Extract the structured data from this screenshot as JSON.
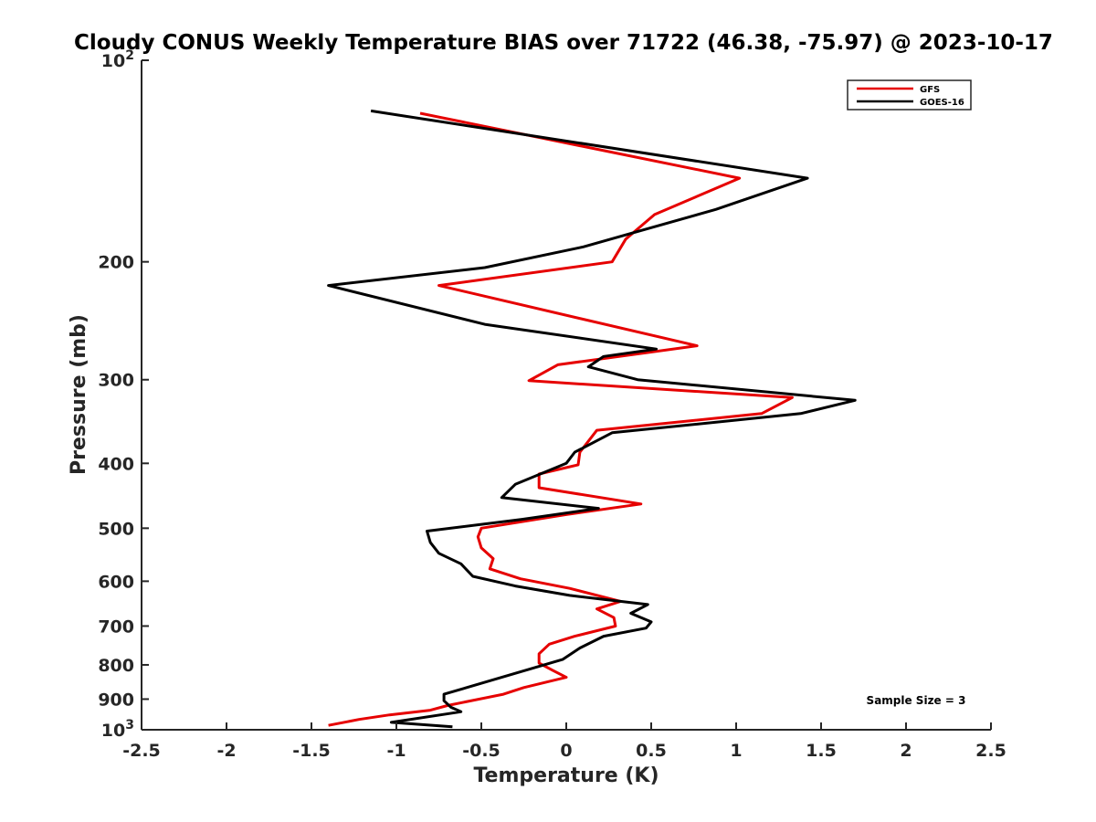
{
  "chart_data": {
    "type": "line",
    "title": "Cloudy CONUS Weekly Temperature BIAS over 71722 (46.38, -75.97) @ 2023-10-17",
    "xlabel": "Temperature (K)",
    "ylabel": "Pressure (mb)",
    "xlim": [
      -2.5,
      2.5
    ],
    "ylim": [
      1000,
      100
    ],
    "yscale": "log",
    "xticks": [
      -2.5,
      -2,
      -1.5,
      -1,
      -0.5,
      0,
      0.5,
      1,
      1.5,
      2,
      2.5
    ],
    "xtick_labels": [
      "-2.5",
      "-2",
      "-1.5",
      "-1",
      "-0.5",
      "0",
      "0.5",
      "1",
      "1.5",
      "2",
      "2.5"
    ],
    "yticks": [
      {
        "value": 100,
        "label": "10",
        "sup": "2"
      },
      {
        "value": 200,
        "label": "200",
        "sup": ""
      },
      {
        "value": 300,
        "label": "300",
        "sup": ""
      },
      {
        "value": 400,
        "label": "400",
        "sup": ""
      },
      {
        "value": 500,
        "label": "500",
        "sup": ""
      },
      {
        "value": 600,
        "label": "600",
        "sup": ""
      },
      {
        "value": 700,
        "label": "700",
        "sup": ""
      },
      {
        "value": 800,
        "label": "800",
        "sup": ""
      },
      {
        "value": 900,
        "label": "900",
        "sup": ""
      },
      {
        "value": 1000,
        "label": "10",
        "sup": "3"
      }
    ],
    "legend_position": "top-right",
    "annotation": "Sample Size = 3",
    "series": [
      {
        "name": "GFS",
        "color": "#e60000",
        "points": [
          [
            -0.86,
            120
          ],
          [
            1.02,
            150
          ],
          [
            0.52,
            170
          ],
          [
            0.35,
            185
          ],
          [
            0.27,
            200
          ],
          [
            -0.75,
            217
          ],
          [
            0.77,
            267
          ],
          [
            -0.05,
            285
          ],
          [
            -0.22,
            301
          ],
          [
            1.33,
            319
          ],
          [
            1.15,
            337
          ],
          [
            0.18,
            357
          ],
          [
            0.08,
            385
          ],
          [
            0.07,
            402
          ],
          [
            -0.16,
            415
          ],
          [
            -0.16,
            435
          ],
          [
            0.44,
            460
          ],
          [
            0.0,
            477
          ],
          [
            -0.5,
            500
          ],
          [
            -0.52,
            515
          ],
          [
            -0.5,
            535
          ],
          [
            -0.43,
            555
          ],
          [
            -0.45,
            575
          ],
          [
            -0.27,
            595
          ],
          [
            0.02,
            615
          ],
          [
            0.32,
            643
          ],
          [
            0.18,
            660
          ],
          [
            0.28,
            680
          ],
          [
            0.29,
            700
          ],
          [
            0.05,
            725
          ],
          [
            -0.1,
            745
          ],
          [
            -0.16,
            770
          ],
          [
            -0.16,
            795
          ],
          [
            -0.08,
            815
          ],
          [
            0.0,
            835
          ],
          [
            -0.25,
            865
          ],
          [
            -0.37,
            885
          ],
          [
            -0.7,
            920
          ],
          [
            -0.8,
            935
          ],
          [
            -1.04,
            950
          ],
          [
            -1.22,
            965
          ],
          [
            -1.4,
            985
          ]
        ]
      },
      {
        "name": "GOES-16",
        "color": "#000000",
        "points": [
          [
            -1.15,
            119
          ],
          [
            1.42,
            150
          ],
          [
            0.88,
            167
          ],
          [
            0.1,
            190
          ],
          [
            -0.48,
            204
          ],
          [
            -1.4,
            217
          ],
          [
            -0.48,
            248
          ],
          [
            0.53,
            270
          ],
          [
            0.22,
            277
          ],
          [
            0.13,
            287
          ],
          [
            0.42,
            300
          ],
          [
            1.7,
            322
          ],
          [
            1.38,
            337
          ],
          [
            0.27,
            360
          ],
          [
            0.05,
            385
          ],
          [
            0.0,
            400
          ],
          [
            -0.3,
            430
          ],
          [
            -0.38,
            450
          ],
          [
            0.19,
            467
          ],
          [
            -0.26,
            485
          ],
          [
            -0.82,
            505
          ],
          [
            -0.8,
            525
          ],
          [
            -0.75,
            545
          ],
          [
            -0.62,
            565
          ],
          [
            -0.55,
            590
          ],
          [
            -0.3,
            610
          ],
          [
            0.02,
            630
          ],
          [
            0.48,
            650
          ],
          [
            0.38,
            670
          ],
          [
            0.5,
            690
          ],
          [
            0.47,
            705
          ],
          [
            0.22,
            725
          ],
          [
            0.08,
            755
          ],
          [
            -0.02,
            785
          ],
          [
            -0.38,
            835
          ],
          [
            -0.72,
            885
          ],
          [
            -0.72,
            905
          ],
          [
            -0.68,
            925
          ],
          [
            -0.62,
            940
          ],
          [
            -1.03,
            975
          ],
          [
            -0.67,
            990
          ]
        ]
      }
    ]
  }
}
